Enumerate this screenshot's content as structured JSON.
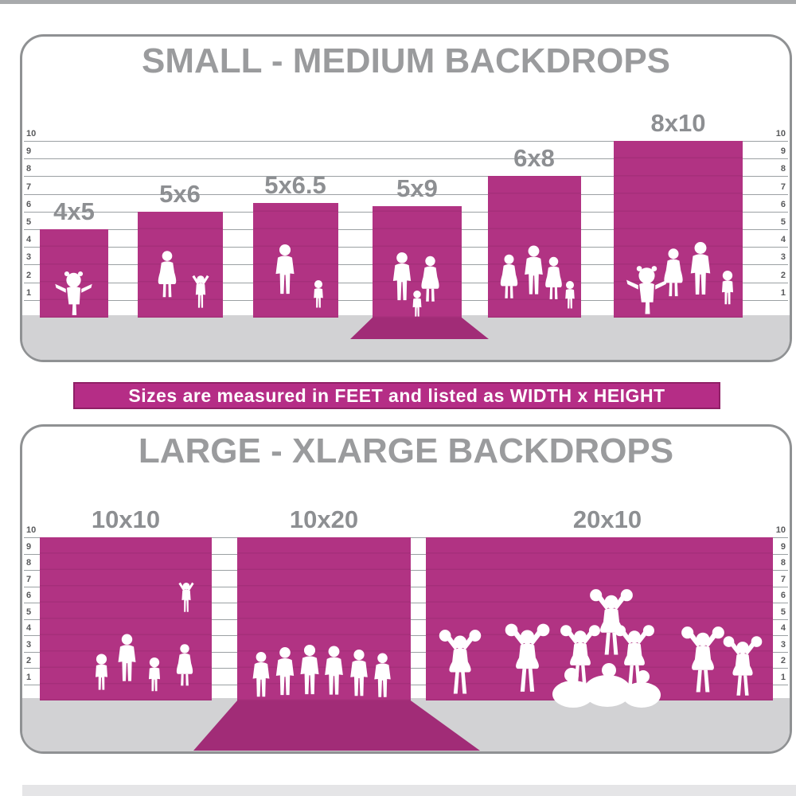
{
  "colors": {
    "backdrop": "#b13383",
    "backdrop_sweep": "#a12c77",
    "banner_bg": "#b52d86",
    "banner_border": "#8f2066",
    "banner_text": "#ffffff",
    "title": "#9a9b9d",
    "size_label": "#8d8f92",
    "ruler_number": "#58595b",
    "ruler_line": "#9ba0a3",
    "floor": "#d2d2d4",
    "panel_border": "#8f9193",
    "silhouette": "#ffffff"
  },
  "banner": {
    "text": "Sizes are measured in FEET and listed as WIDTH x HEIGHT"
  },
  "panels": [
    {
      "title": "SMALL - MEDIUM BACKDROPS",
      "ruler": {
        "unit": "feet",
        "values": [
          1,
          2,
          3,
          4,
          5,
          6,
          7,
          8,
          9,
          10
        ]
      },
      "backdrops": [
        {
          "label": "4x5",
          "width_ft": 4,
          "height_ft": 5,
          "scene": "toddler-girl-silhouette"
        },
        {
          "label": "5x6",
          "width_ft": 5,
          "height_ft": 6,
          "scene": "mother-and-child-silhouette"
        },
        {
          "label": "5x6.5",
          "width_ft": 5,
          "height_ft": 6.5,
          "scene": "father-and-child-silhouette"
        },
        {
          "label": "5x9",
          "width_ft": 5,
          "height_ft": 9,
          "scene": "couple-with-child-silhouette",
          "floor_sweep": true
        },
        {
          "label": "6x8",
          "width_ft": 6,
          "height_ft": 8,
          "scene": "family-of-four-silhouette"
        },
        {
          "label": "8x10",
          "width_ft": 8,
          "height_ft": 10,
          "scene": "family-with-kids-silhouette"
        }
      ]
    },
    {
      "title": "LARGE - XLARGE BACKDROPS",
      "ruler": {
        "unit": "feet",
        "values": [
          1,
          2,
          3,
          4,
          5,
          6,
          7,
          8,
          9,
          10
        ]
      },
      "backdrops": [
        {
          "label": "10x10",
          "width_ft": 10,
          "height_ft": 10,
          "scene": "family-group-child-on-shoulders-silhouette"
        },
        {
          "label": "10x20",
          "width_ft": 10,
          "height_ft": 20,
          "scene": "group-of-men-silhouette",
          "floor_sweep": true
        },
        {
          "label": "20x10",
          "width_ft": 20,
          "height_ft": 10,
          "scene": "cheerleading-squad-pyramid-silhouette"
        }
      ]
    }
  ],
  "chart_data": [
    {
      "type": "bar",
      "title": "SMALL - MEDIUM BACKDROPS",
      "categories": [
        "4x5",
        "5x6",
        "5x6.5",
        "5x9",
        "6x8",
        "8x10"
      ],
      "series": [
        {
          "name": "width_ft",
          "values": [
            4,
            5,
            5,
            5,
            6,
            8
          ]
        },
        {
          "name": "height_ft",
          "values": [
            5,
            6,
            6.5,
            9,
            8,
            10
          ]
        }
      ],
      "ylabel": "feet",
      "ylim": [
        0,
        10
      ],
      "grid": true,
      "note": "Sizes are measured in FEET and listed as WIDTH x HEIGHT"
    },
    {
      "type": "bar",
      "title": "LARGE - XLARGE BACKDROPS",
      "categories": [
        "10x10",
        "10x20",
        "20x10"
      ],
      "series": [
        {
          "name": "width_ft",
          "values": [
            10,
            10,
            20
          ]
        },
        {
          "name": "height_ft",
          "values": [
            10,
            20,
            10
          ]
        }
      ],
      "ylabel": "feet",
      "ylim": [
        0,
        10
      ],
      "grid": true
    }
  ]
}
